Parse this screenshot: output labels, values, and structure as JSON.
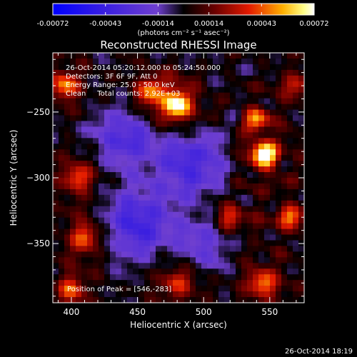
{
  "colorbar": {
    "tick_labels": [
      "-0.00072",
      "-0.00043",
      "-0.00014",
      "0.00014",
      "0.00043",
      "0.00072"
    ],
    "tick_values": [
      -0.00072,
      -0.00043,
      -0.00014,
      0.00014,
      0.00043,
      0.00072
    ],
    "range": [
      -0.00072,
      0.00072
    ],
    "unit_label": "(photons cm⁻² s⁻¹ asec⁻²)",
    "colors": {
      "negative_low": "#0000ff",
      "negative_mid": "#6f3fcf",
      "zero": "#000000",
      "positive_mid": "#e31a00",
      "positive_high": "#ffff88",
      "positive_max": "#ffffff"
    }
  },
  "footer": {
    "timestamp": "26-Oct-2014 18:19"
  },
  "chart_data": {
    "type": "heatmap",
    "title": "Reconstructed RHESSI Image",
    "xlabel": "Heliocentric X (arcsec)",
    "ylabel": "Heliocentric Y (arcsec)",
    "xlim": [
      386,
      576
    ],
    "ylim": [
      -395,
      -205
    ],
    "x_ticks": [
      400,
      450,
      500,
      550
    ],
    "x_tick_labels": [
      "400",
      "450",
      "500",
      "550"
    ],
    "y_ticks": [
      -250,
      -300,
      -350
    ],
    "y_tick_labels": [
      "−250",
      "−300",
      "−350"
    ],
    "annotations": {
      "time_range": "26-Oct-2014 05:20:12.000 to 05:24:50.000",
      "detectors": "Detectors: 3F 6F 9F, Att 0",
      "energy_range": "Energy Range: 25.0 - 50.0 keV",
      "clean_counts": "Clean     Total counts: 2.92E+03",
      "peak": "Position of Peak = [546,-283]"
    },
    "peak": [
      546,
      -283
    ],
    "grid": false,
    "sources": [
      {
        "x": 546,
        "y": -283,
        "amp": 1.0,
        "sigma": 9
      },
      {
        "x": 540,
        "y": -255,
        "amp": 0.6,
        "sigma": 8
      },
      {
        "x": 480,
        "y": -245,
        "amp": 0.95,
        "sigma": 10
      },
      {
        "x": 460,
        "y": -235,
        "amp": 0.55,
        "sigma": 10
      },
      {
        "x": 395,
        "y": -230,
        "amp": 0.65,
        "sigma": 9
      },
      {
        "x": 405,
        "y": -300,
        "amp": 0.55,
        "sigma": 10
      },
      {
        "x": 410,
        "y": -345,
        "amp": 0.6,
        "sigma": 10
      },
      {
        "x": 400,
        "y": -385,
        "amp": 0.55,
        "sigma": 9
      },
      {
        "x": 520,
        "y": -330,
        "amp": 0.45,
        "sigma": 10
      },
      {
        "x": 565,
        "y": -330,
        "amp": 0.55,
        "sigma": 9
      },
      {
        "x": 545,
        "y": -380,
        "amp": 0.6,
        "sigma": 10
      },
      {
        "x": 480,
        "y": -380,
        "amp": 0.45,
        "sigma": 11
      },
      {
        "x": 570,
        "y": -230,
        "amp": 0.4,
        "sigma": 9
      },
      {
        "x": 440,
        "y": -270,
        "amp": -0.45,
        "sigma": 16
      },
      {
        "x": 490,
        "y": -290,
        "amp": -0.5,
        "sigma": 18
      },
      {
        "x": 450,
        "y": -335,
        "amp": -0.55,
        "sigma": 18
      },
      {
        "x": 500,
        "y": -350,
        "amp": -0.35,
        "sigma": 14
      }
    ]
  }
}
